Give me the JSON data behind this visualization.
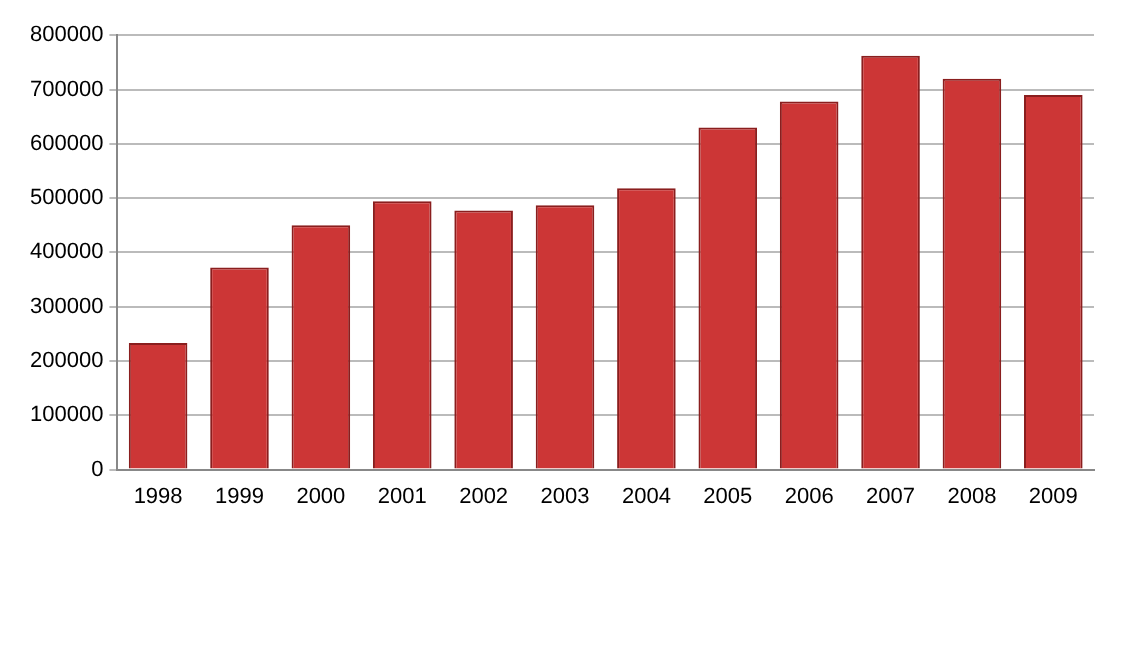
{
  "chart_data": {
    "type": "bar",
    "categories": [
      "1998",
      "1999",
      "2000",
      "2001",
      "2002",
      "2003",
      "2004",
      "2005",
      "2006",
      "2007",
      "2008",
      "2009"
    ],
    "values": [
      233000,
      372000,
      450000,
      494000,
      477000,
      487000,
      518000,
      630000,
      678000,
      762000,
      720000,
      690000
    ],
    "color": "#cc3636",
    "ylim": [
      0,
      800000
    ],
    "yticks": [
      0,
      100000,
      200000,
      300000,
      400000,
      500000,
      600000,
      700000,
      800000
    ],
    "grid": "y",
    "legend": false
  }
}
